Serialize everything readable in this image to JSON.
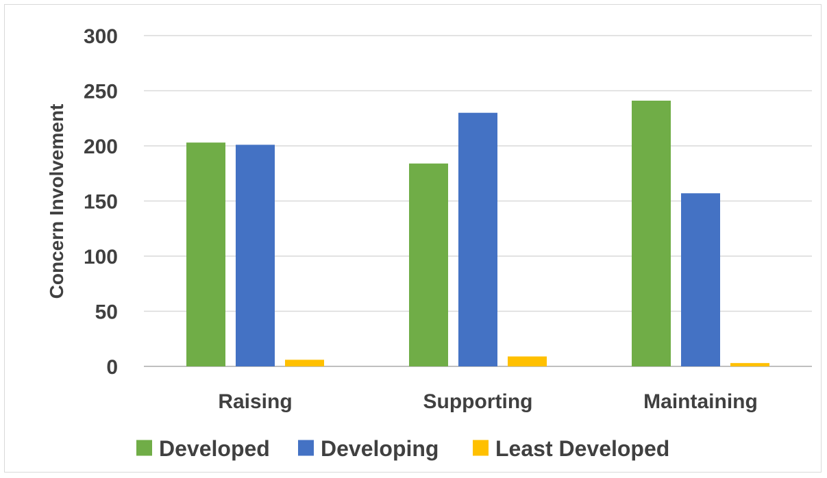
{
  "chart_data": {
    "type": "bar",
    "title": "",
    "xlabel": "",
    "ylabel": "Concern Involvement",
    "ylim": [
      0,
      300
    ],
    "yticks": [
      0,
      50,
      100,
      150,
      200,
      250,
      300
    ],
    "grid": true,
    "legend_position": "bottom",
    "categories": [
      "Raising",
      "Supporting",
      "Maintaining"
    ],
    "series": [
      {
        "name": "Developed",
        "color": "#70ad47",
        "values": [
          203,
          184,
          241
        ]
      },
      {
        "name": "Developing",
        "color": "#4472c4",
        "values": [
          201,
          230,
          157
        ]
      },
      {
        "name": "Least Developed",
        "color": "#ffc000",
        "values": [
          6,
          9,
          3
        ]
      }
    ]
  }
}
